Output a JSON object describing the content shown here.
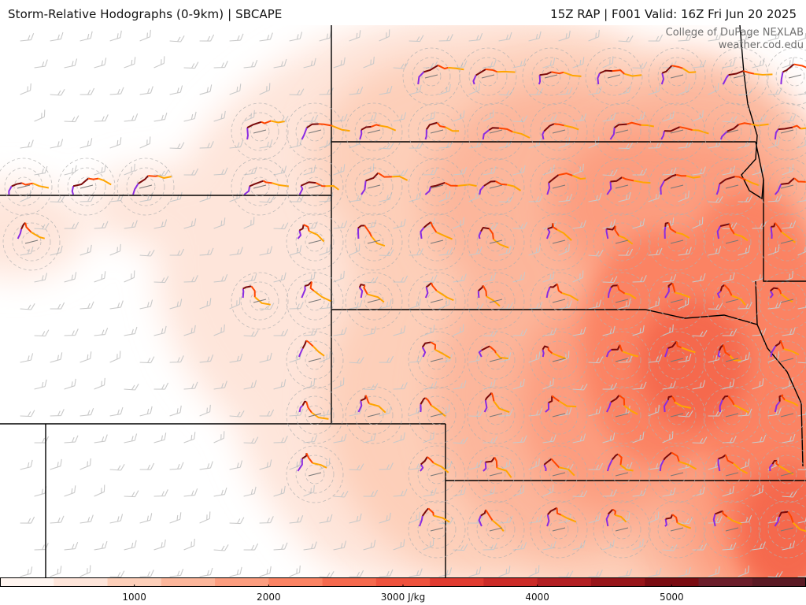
{
  "header": {
    "left_title": "Storm-Relative Hodographs (0-9km) | SBCAPE",
    "right_title": "15Z RAP | F001 Valid: 16Z Fri Jun 20 2025"
  },
  "credit": {
    "line1": "College of DuPage NEXLAB",
    "line2": "weather.cod.edu"
  },
  "colorbar": {
    "min": 0,
    "max": 6000,
    "tick_labels": [
      "1000",
      "2000",
      "3000 J/kg",
      "4000",
      "5000"
    ],
    "tick_values": [
      1000,
      2000,
      3000,
      4000,
      5000
    ],
    "colors": [
      "#fff5f0",
      "#fee5da",
      "#fdcfb9",
      "#fcb69b",
      "#fc9d7f",
      "#fb8363",
      "#f5694d",
      "#ee523d",
      "#e03b30",
      "#cb2b27",
      "#b21f22",
      "#971519",
      "#7a0c12",
      "#6b1d2a",
      "#5a1a24"
    ]
  },
  "hodograph_colors": {
    "low": "#7a0a0a",
    "mid_low": "#ff4500",
    "mid_high": "#ffa500",
    "high": "#8a2be2"
  }
}
